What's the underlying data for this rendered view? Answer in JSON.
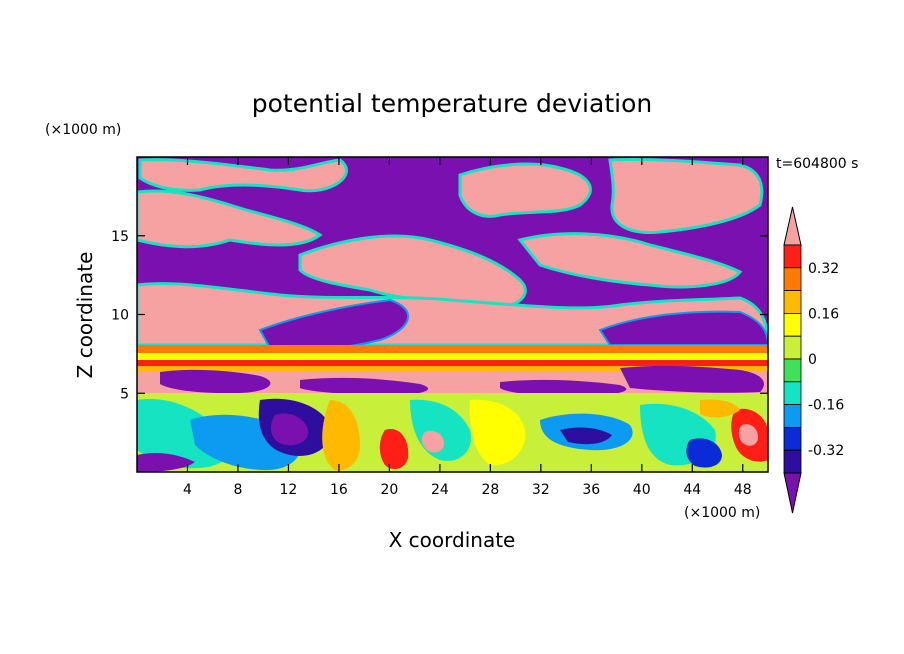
{
  "chart_data": {
    "type": "heatmap",
    "title": "potential temperature deviation",
    "xlabel": "X coordinate",
    "ylabel": "Z coordinate",
    "x_unit": "(×1000 m)",
    "y_unit": "(×1000 m)",
    "time_label": "t=604800 s",
    "xlim": [
      0,
      50
    ],
    "ylim": [
      0,
      20
    ],
    "x_ticks": [
      4,
      8,
      12,
      16,
      20,
      24,
      28,
      32,
      36,
      40,
      44,
      48
    ],
    "y_ticks": [
      5,
      10,
      15
    ],
    "colorbar": {
      "levels": [
        -0.4,
        -0.32,
        -0.24,
        -0.16,
        -0.08,
        0,
        0.08,
        0.16,
        0.24,
        0.32,
        0.4
      ],
      "tick_labels": [
        "0.32",
        "0.16",
        "0",
        "-0.16",
        "-0.32"
      ],
      "tick_values": [
        0.32,
        0.16,
        0,
        -0.16,
        -0.32
      ],
      "colors": [
        "#7b10b0",
        "#2d0e9f",
        "#0a2bd6",
        "#0c9bf0",
        "#16e3c1",
        "#3fe05a",
        "#c8f03a",
        "#ffff00",
        "#ffba00",
        "#ff7a00",
        "#ff1f16",
        "#f7a2a2"
      ],
      "extend": "both"
    }
  }
}
